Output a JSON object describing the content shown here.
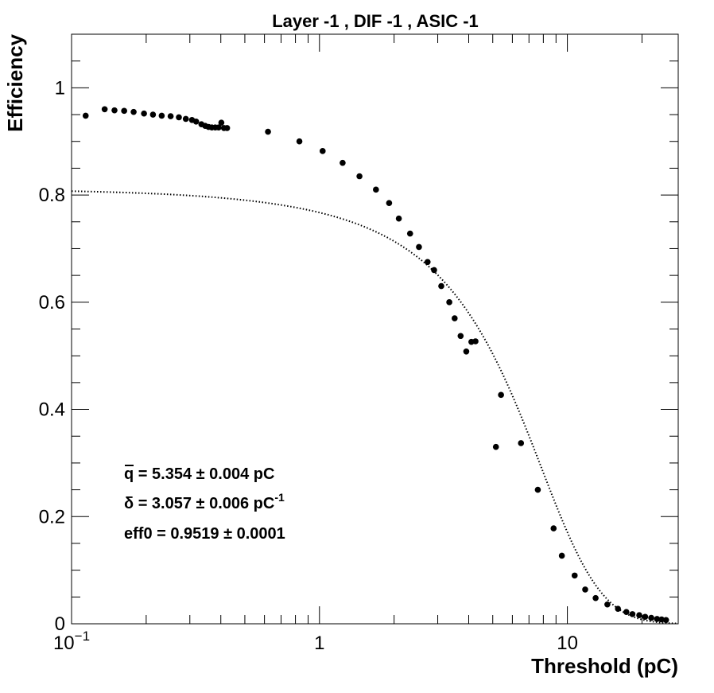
{
  "chart_data": {
    "type": "scatter",
    "title": "Layer -1 , DIF -1 , ASIC -1",
    "xlabel": "Threshold (pC)",
    "ylabel": "Efficiency",
    "xscale": "log",
    "xlim": [
      0.1,
      28
    ],
    "ylim": [
      0,
      1.1
    ],
    "x_tick_labels": [
      {
        "value": 0.1,
        "base": "10",
        "exp": "−1"
      },
      {
        "value": 1,
        "base": "1",
        "exp": ""
      },
      {
        "value": 10,
        "base": "10",
        "exp": ""
      }
    ],
    "y_ticks": [
      0,
      0.2,
      0.4,
      0.6,
      0.8,
      1
    ],
    "y_tick_labels": [
      "0",
      "0.2",
      "0.4",
      "0.6",
      "0.8",
      "1"
    ],
    "grid": false,
    "series": [
      {
        "marker": "filled-circle",
        "color": "#000000",
        "x": [
          0.114,
          0.136,
          0.149,
          0.163,
          0.178,
          0.196,
          0.213,
          0.231,
          0.251,
          0.271,
          0.289,
          0.306,
          0.318,
          0.334,
          0.346,
          0.357,
          0.368,
          0.38,
          0.392,
          0.402,
          0.412,
          0.424,
          0.62,
          0.83,
          1.03,
          1.24,
          1.45,
          1.69,
          1.91,
          2.09,
          2.32,
          2.52,
          2.73,
          2.9,
          3.1,
          3.34,
          3.51,
          3.71,
          3.91,
          4.1,
          4.26,
          5.15,
          5.4,
          6.5,
          7.6,
          8.8,
          9.5,
          10.7,
          11.8,
          13.0,
          14.5,
          16.0,
          17.3,
          18.3,
          19.5,
          20.6,
          21.8,
          23.0,
          24.0,
          25.0
        ],
        "y": [
          0.948,
          0.96,
          0.958,
          0.957,
          0.955,
          0.952,
          0.95,
          0.948,
          0.947,
          0.945,
          0.942,
          0.94,
          0.937,
          0.932,
          0.929,
          0.927,
          0.926,
          0.926,
          0.926,
          0.935,
          0.925,
          0.925,
          0.918,
          0.9,
          0.882,
          0.86,
          0.835,
          0.81,
          0.785,
          0.756,
          0.728,
          0.703,
          0.675,
          0.66,
          0.63,
          0.6,
          0.57,
          0.537,
          0.508,
          0.526,
          0.527,
          0.33,
          0.427,
          0.337,
          0.25,
          0.178,
          0.127,
          0.09,
          0.064,
          0.048,
          0.036,
          0.028,
          0.022,
          0.018,
          0.016,
          0.013,
          0.011,
          0.009,
          0.008,
          0.007
        ]
      }
    ],
    "fit": {
      "style": "dotted",
      "color": "#000000",
      "function": "eff0 / (1 + exp((x - q) / delta))",
      "params": {
        "eff0": 0.9519,
        "q": 5.354,
        "delta": 3.057
      }
    },
    "annotations": [
      {
        "sym": "q",
        "text": " = 5.354 ± 0.004 pC",
        "sup": ""
      },
      {
        "sym": "δ",
        "text": " = 3.057 ± 0.006 pC",
        "sup": "-1"
      },
      {
        "sym": "",
        "text": "eff0 = 0.9519 ± 0.0001",
        "sup": ""
      }
    ]
  }
}
